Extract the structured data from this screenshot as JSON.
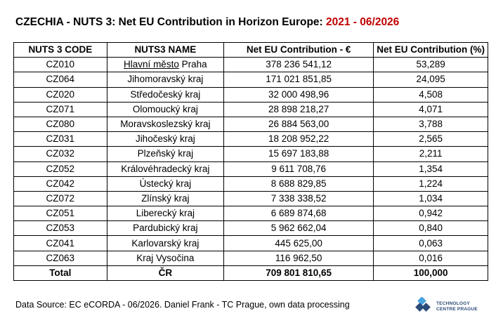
{
  "title": {
    "main": "CZECHIA - NUTS 3: Net EU Contribution in Horizon Europe: ",
    "range": "2021 - 06/2026",
    "range_color": "#c00000"
  },
  "table": {
    "headers": [
      "NUTS 3 CODE",
      "NUTS3 NAME",
      "Net EU Contribution - €",
      "Net EU Contribution (%)"
    ],
    "rows": [
      {
        "code": "CZ010",
        "name_u": "Hlavní město",
        "name": " Praha",
        "contrib": "378 236 541,12",
        "pct": "53,289"
      },
      {
        "code": "CZ064",
        "name_u": "",
        "name": "Jihomoravský kraj",
        "contrib": "171 021 851,85",
        "pct": "24,095"
      },
      {
        "code": "CZ020",
        "name_u": "",
        "name": "Středočeský kraj",
        "contrib": "32 000 498,96",
        "pct": "4,508"
      },
      {
        "code": "CZ071",
        "name_u": "",
        "name": "Olomoucký kraj",
        "contrib": "28 898 218,27",
        "pct": "4,071"
      },
      {
        "code": "CZ080",
        "name_u": "",
        "name": "Moravskoslezský kraj",
        "contrib": "26 884 563,00",
        "pct": "3,788"
      },
      {
        "code": "CZ031",
        "name_u": "",
        "name": "Jihočeský kraj",
        "contrib": "18 208 952,22",
        "pct": "2,565"
      },
      {
        "code": "CZ032",
        "name_u": "",
        "name": "Plzeňský kraj",
        "contrib": "15 697 183,88",
        "pct": "2,211"
      },
      {
        "code": "CZ052",
        "name_u": "",
        "name": "Královéhradecký kraj",
        "contrib": "9 611 708,76",
        "pct": "1,354"
      },
      {
        "code": "CZ042",
        "name_u": "",
        "name": "Ústecký kraj",
        "contrib": "8 688 829,85",
        "pct": "1,224"
      },
      {
        "code": "CZ072",
        "name_u": "",
        "name": "Zlínský kraj",
        "contrib": "7 338 338,52",
        "pct": "1,034"
      },
      {
        "code": "CZ051",
        "name_u": "",
        "name": "Liberecký kraj",
        "contrib": "6 689 874,68",
        "pct": "0,942"
      },
      {
        "code": "CZ053",
        "name_u": "",
        "name": "Pardubický kraj",
        "contrib": "5 962 662,04",
        "pct": "0,840"
      },
      {
        "code": "CZ041",
        "name_u": "",
        "name": "Karlovarský kraj",
        "contrib": "445 625,00",
        "pct": "0,063"
      },
      {
        "code": "CZ063",
        "name_u": "",
        "name": "Kraj Vysočina",
        "contrib": "116 962,50",
        "pct": "0,016"
      }
    ],
    "total": {
      "code": "Total",
      "name": "ČR",
      "contrib": "709 801 810,65",
      "pct": "100,000"
    }
  },
  "footer": {
    "source": "Data Source: EC eCORDA - 06/2026. Daniel Frank - TC Prague, own data processing",
    "logo": {
      "line1": "TECHNOLOGY",
      "line2": "CENTRE PRAGUE",
      "icon": "tc-prague-logo-icon",
      "color": "#2b4b78",
      "accent": "#4aa3df"
    }
  }
}
